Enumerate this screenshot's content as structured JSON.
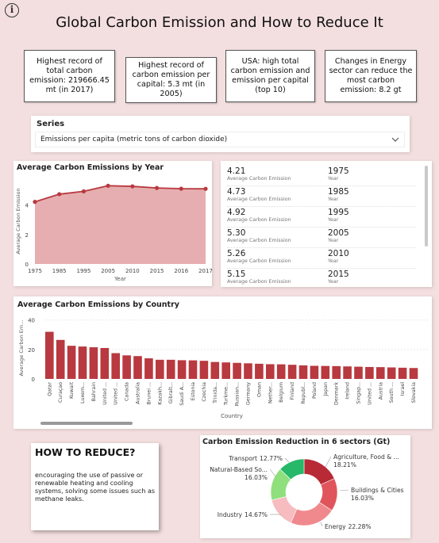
{
  "page": {
    "title": "Global Carbon Emission and How to Reduce It",
    "info_glyph": "i"
  },
  "kpis": [
    "Highest record of total carbon emission: 219666.45 mt (in 2017)",
    "Highest record of carbon emission per capital: 5.3 mt (in 2005)",
    "USA: high total carbon emission and emission per capital (top 10)",
    "Changes in Energy sector can reduce the most carbon emission: 8.2 gt"
  ],
  "slicer": {
    "title": "Series",
    "selected": "Emissions per capita (metric tons of carbon dioxide)"
  },
  "chart_data": [
    {
      "type": "area",
      "title": "Average Carbon Emissions by Year",
      "xlabel": "Year",
      "ylabel": "Average Carbon Emission",
      "categories": [
        "1975",
        "1985",
        "1995",
        "2005",
        "2010",
        "2015",
        "2016",
        "2017"
      ],
      "values": [
        4.21,
        4.73,
        4.92,
        5.3,
        5.26,
        5.15,
        5.1,
        5.09
      ],
      "yticks": [
        0,
        2,
        4
      ],
      "ylim": [
        0,
        5.8
      ],
      "color": "#b8393f",
      "fill": "#e6aeb0"
    },
    {
      "type": "bar",
      "title": "Average Carbon Emissions by Country",
      "xlabel": "Country",
      "ylabel": "Average Carbon Em...",
      "categories": [
        "Qatar",
        "Curaçao",
        "Kuwait",
        "Luxem...",
        "Bahrain",
        "United ...",
        "United ...",
        "Canada",
        "Australia",
        "Brunei ...",
        "Kazakh...",
        "Gibralt...",
        "Saudi A...",
        "Estonia",
        "Czechia",
        "Trinida...",
        "Turkme...",
        "Russian...",
        "Germany",
        "Oman",
        "Nether...",
        "Belgium",
        "Finland",
        "Republ...",
        "Poland",
        "Japan",
        "Denmark",
        "Ireland",
        "Singap...",
        "United ...",
        "Austria",
        "South ...",
        "Israel",
        "Slovakia"
      ],
      "values": [
        32,
        26.5,
        22.5,
        22,
        21.5,
        21,
        17.5,
        16,
        15.5,
        14,
        13,
        13,
        12.7,
        12.6,
        12.3,
        11.5,
        11.2,
        10.9,
        10.6,
        10.3,
        10,
        9.9,
        9.6,
        9.2,
        8.9,
        8.8,
        8.7,
        8.5,
        8.3,
        8.1,
        8,
        7.8,
        7.6,
        7.4
      ],
      "yticks": [
        0,
        20,
        40
      ],
      "ylim": [
        0,
        42
      ],
      "color": "#b8393f"
    },
    {
      "type": "pie",
      "title": "Carbon Emission Reduction in 6 sectors (Gt)",
      "slices": [
        {
          "label": "Agriculture, Food & ...",
          "value": 18.21,
          "pct": "18.21%",
          "color": "#b82a35"
        },
        {
          "label": "Buildings & Cities",
          "value": 16.03,
          "pct": "16.03%",
          "color": "#e0555c"
        },
        {
          "label": "Energy",
          "value": 22.28,
          "pct": "22.28%",
          "color": "#f0898d"
        },
        {
          "label": "Industry",
          "value": 14.67,
          "pct": "14.67%",
          "color": "#f6bcbf"
        },
        {
          "label": "Natural-Based So...",
          "value": 16.03,
          "pct": "16.03%",
          "color": "#8fdf7d"
        },
        {
          "label": "Transport",
          "value": 12.77,
          "pct": "12.77%",
          "color": "#27b86a"
        }
      ]
    }
  ],
  "year_table": {
    "sub_label": "Average Carbon Emission",
    "year_label": "Year",
    "rows": [
      {
        "value": "4.21",
        "year": "1975"
      },
      {
        "value": "4.73",
        "year": "1985"
      },
      {
        "value": "4.92",
        "year": "1995"
      },
      {
        "value": "5.30",
        "year": "2005"
      },
      {
        "value": "5.26",
        "year": "2010"
      },
      {
        "value": "5.15",
        "year": "2015"
      }
    ]
  },
  "howto": {
    "title": "HOW TO REDUCE?",
    "text": "encouraging the use of passive or renewable heating and cooling systems, solving some issues such as methane leaks."
  }
}
